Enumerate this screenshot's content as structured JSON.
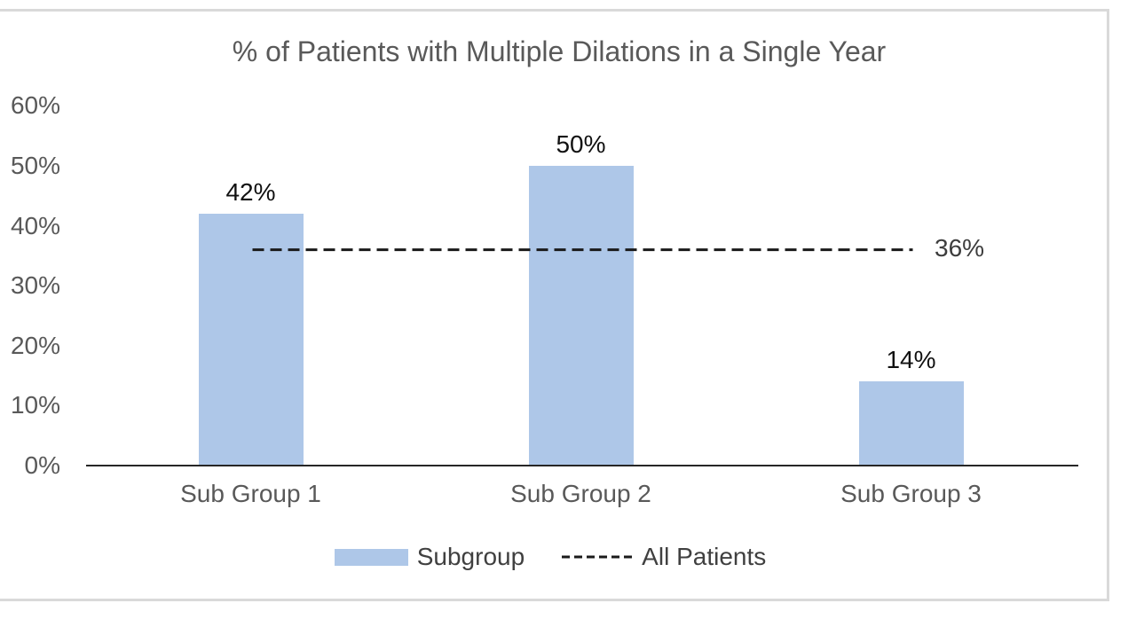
{
  "chart_data": {
    "type": "bar",
    "title": "% of Patients with Multiple Dilations in a Single Year",
    "categories": [
      "Sub Group 1",
      "Sub Group 2",
      "Sub Group 3"
    ],
    "series": [
      {
        "name": "Subgroup",
        "type": "bar",
        "values": [
          42,
          50,
          14
        ]
      },
      {
        "name": "All Patients",
        "type": "line",
        "line_style": "dashed",
        "values": [
          36,
          36,
          36
        ]
      }
    ],
    "bar_data_labels": [
      "42%",
      "50%",
      "14%"
    ],
    "line_end_label": "36%",
    "y_ticks": [
      {
        "value": 60,
        "label": "60%"
      },
      {
        "value": 50,
        "label": "50%"
      },
      {
        "value": 40,
        "label": "40%"
      },
      {
        "value": 30,
        "label": "30%"
      },
      {
        "value": 20,
        "label": "20%"
      },
      {
        "value": 10,
        "label": "10%"
      },
      {
        "value": 0,
        "label": "0%"
      }
    ],
    "ylim": [
      0,
      60
    ],
    "xlabel": "",
    "ylabel": "",
    "grid": false,
    "legend_position": "bottom",
    "colors": {
      "bar_fill": "#aec7e8",
      "line": "#1a1a1a",
      "title_text": "#595959",
      "tick_text": "#595959",
      "data_label_text": "#111111",
      "axis_line": "#262626",
      "frame_border": "#d9d9d9"
    }
  }
}
